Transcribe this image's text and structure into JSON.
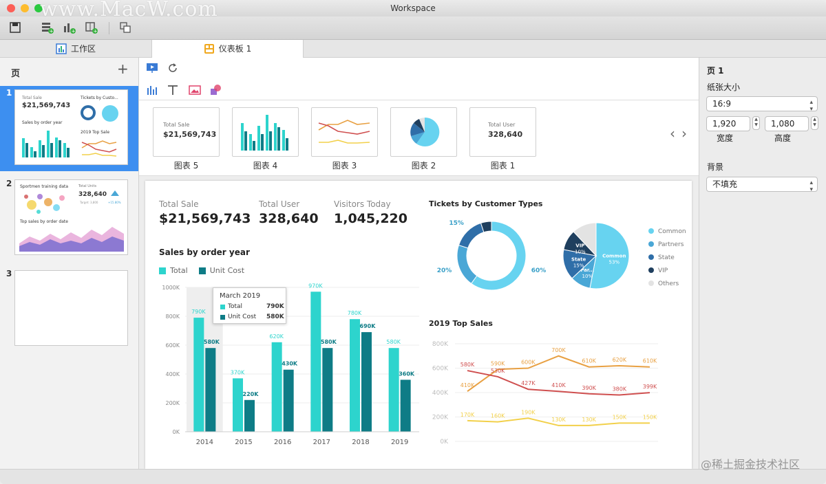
{
  "window": {
    "title": "Workspace",
    "watermark": "www.MacW.com"
  },
  "tabs": [
    {
      "label": "工作区"
    },
    {
      "label": "仪表板 1"
    }
  ],
  "pages_panel": {
    "title": "页",
    "add": "+",
    "pages": [
      {
        "number": "1",
        "total_label": "Total Sale",
        "total_value": "$21,569,743",
        "tickets_label": "Tickets by Custo...",
        "sales_label": "Sales by order year",
        "top_label": "2019 Top Sale"
      },
      {
        "number": "2",
        "training_label": "Sportmen training data",
        "units_label": "Total Units",
        "units_value": "328,640",
        "target_label": "Target: 3,800",
        "change_label": "+15.80%",
        "topsales_label": "Top sales by order date"
      },
      {
        "number": "3"
      }
    ]
  },
  "chart_gallery": [
    {
      "caption": "图表 5",
      "total_label": "Total Sale",
      "total_value": "$21,569,743"
    },
    {
      "caption": "图表 4"
    },
    {
      "caption": "图表 3"
    },
    {
      "caption": "图表 2"
    },
    {
      "caption": "图表 1",
      "total_label": "Total User",
      "total_value": "328,640"
    }
  ],
  "gallery_nav": {
    "prev": "‹",
    "next": "›"
  },
  "kpis": [
    {
      "label": "Total Sale",
      "value": "$21,569,743"
    },
    {
      "label": "Total User",
      "value": "328,640"
    },
    {
      "label": "Visitors Today",
      "value": "1,045,220"
    }
  ],
  "properties": {
    "page_title": "页 1",
    "paper_size_label": "纸张大小",
    "paper_size_value": "16:9",
    "width_value": "1,920",
    "height_value": "1,080",
    "width_label": "宽度",
    "height_label": "高度",
    "background_label": "背景",
    "background_value": "不填充"
  },
  "footer_watermark": "@稀土掘金技术社区",
  "colors": {
    "teal": "#2dd4cd",
    "dark_teal": "#0e7c86",
    "selected": "#3d8ff0"
  },
  "tooltip": {
    "title": "March 2019",
    "rows": [
      {
        "name": "Total",
        "value": "790K"
      },
      {
        "name": "Unit Cost",
        "value": "580K"
      }
    ]
  },
  "chart_data": [
    {
      "type": "bar",
      "title": "Sales by order year",
      "categories": [
        "2014",
        "2015",
        "2016",
        "2017",
        "2018",
        "2019"
      ],
      "series": [
        {
          "name": "Total",
          "values": [
            790,
            370,
            620,
            970,
            780,
            580
          ],
          "labels": [
            "790K",
            "370K",
            "620K",
            "970K",
            "780K",
            "580K"
          ],
          "color": "#2dd4cd"
        },
        {
          "name": "Unit Cost",
          "values": [
            580,
            220,
            430,
            580,
            690,
            360
          ],
          "labels": [
            "580K",
            "220K",
            "430K",
            "580K",
            "690K",
            "360K"
          ],
          "color": "#0e7c86"
        }
      ],
      "yticks": [
        "0K",
        "200K",
        "400K",
        "600K",
        "800K",
        "1000K"
      ],
      "ylim": [
        0,
        1000
      ]
    },
    {
      "type": "pie",
      "title": "Tickets by Customer Types",
      "donut": {
        "slices": [
          {
            "name": "Common",
            "value": 60,
            "label": "60%"
          },
          {
            "name": "Partners",
            "value": 20,
            "label": "20%"
          },
          {
            "name": "State",
            "value": 15,
            "label": "15%"
          },
          {
            "name": "VIP",
            "value": 5,
            "label": "5%"
          }
        ]
      },
      "pie": {
        "slices": [
          {
            "name": "Common",
            "value": 53,
            "label": "Common",
            "pct": "53%"
          },
          {
            "name": "Partners",
            "value": 10,
            "label": "Par...",
            "pct": "10%"
          },
          {
            "name": "State",
            "value": 15,
            "label": "State",
            "pct": "15%"
          },
          {
            "name": "VIP",
            "value": 10,
            "label": "VIP",
            "pct": "10%"
          },
          {
            "name": "Others",
            "value": 12,
            "label": "",
            "pct": ""
          }
        ]
      },
      "legend": [
        "Common",
        "Partners",
        "State",
        "VIP",
        "Others"
      ],
      "colors": {
        "Common": "#67d3f0",
        "Partners": "#4aa7d6",
        "State": "#2f6ea8",
        "VIP": "#1f3f5e",
        "Others": "#e3e3e3"
      }
    },
    {
      "type": "line",
      "title": "2019 Top Sales",
      "yticks": [
        "0K",
        "200K",
        "400K",
        "600K",
        "800K"
      ],
      "ylim": [
        0,
        800
      ],
      "series": [
        {
          "color": "#e8a042",
          "values": [
            410,
            590,
            600,
            700,
            610,
            620,
            610
          ],
          "labels": [
            "410K",
            "590K",
            "600K",
            "700K",
            "610K",
            "620K",
            "610K"
          ]
        },
        {
          "color": "#cf4f4f",
          "values": [
            580,
            530,
            427,
            410,
            390,
            380,
            399
          ],
          "labels": [
            "580K",
            "530K",
            "427K",
            "410K",
            "390K",
            "380K",
            "399K"
          ]
        },
        {
          "color": "#f2d04a",
          "values": [
            170,
            160,
            190,
            130,
            130,
            150,
            150
          ],
          "labels": [
            "170K",
            "160K",
            "190K",
            "130K",
            "130K",
            "150K",
            "150K"
          ]
        }
      ]
    }
  ]
}
